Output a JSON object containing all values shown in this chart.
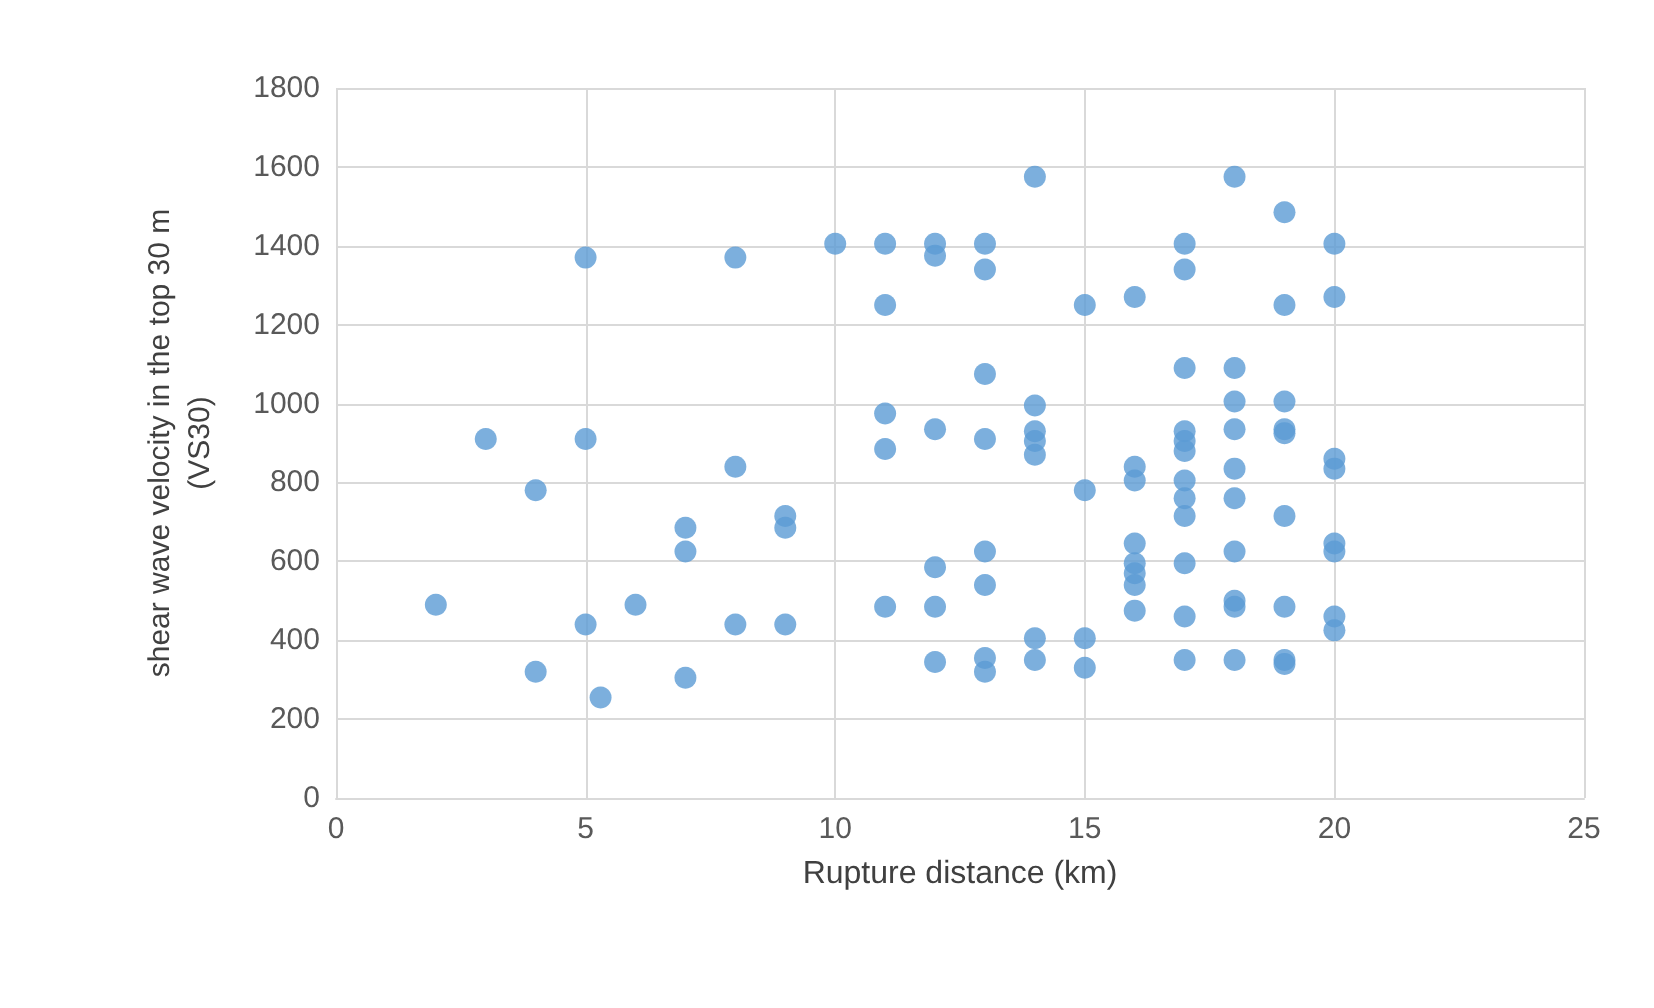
{
  "chart_data": {
    "type": "scatter",
    "xlabel": "Rupture distance (km)",
    "ylabel": "shear wave velocity in the top 30 m (VS30)",
    "x": [
      2,
      3,
      4,
      4,
      5,
      5,
      5,
      5.3,
      6,
      7,
      7,
      7,
      8,
      8,
      8,
      9,
      9,
      9,
      10,
      11,
      11,
      11,
      11,
      11,
      12,
      12,
      12,
      12,
      12,
      12,
      13,
      13,
      13,
      13,
      13,
      13,
      13,
      13,
      14,
      14,
      14,
      14,
      14,
      14,
      14,
      15,
      15,
      15,
      15,
      16,
      16,
      16,
      16,
      16,
      16,
      16,
      16,
      17,
      17,
      17,
      17,
      17,
      17,
      17,
      17,
      17,
      17,
      17,
      17,
      18,
      18,
      18,
      18,
      18,
      18,
      18,
      18,
      18,
      18,
      19,
      19,
      19,
      19,
      19,
      19,
      19,
      19,
      19,
      20,
      20,
      20,
      20,
      20,
      20,
      20,
      20
    ],
    "values": [
      490,
      910,
      780,
      320,
      1370,
      910,
      440,
      255,
      490,
      685,
      625,
      305,
      1370,
      840,
      440,
      715,
      685,
      440,
      1405,
      1405,
      1250,
      975,
      885,
      485,
      1405,
      1375,
      935,
      585,
      485,
      345,
      1405,
      1340,
      1075,
      910,
      625,
      540,
      355,
      320,
      1575,
      995,
      930,
      905,
      870,
      405,
      350,
      1250,
      780,
      405,
      330,
      1270,
      840,
      805,
      645,
      595,
      570,
      540,
      475,
      1405,
      1340,
      1090,
      930,
      905,
      880,
      805,
      760,
      715,
      595,
      460,
      350,
      1575,
      1090,
      1005,
      935,
      835,
      760,
      625,
      500,
      485,
      350,
      1485,
      1250,
      1005,
      935,
      925,
      715,
      485,
      350,
      340,
      1405,
      1270,
      860,
      835,
      645,
      625,
      460,
      425
    ],
    "color": "#5b9bd5",
    "marker": "circle",
    "xlim": [
      0,
      25
    ],
    "xticks": [
      0,
      5,
      10,
      15,
      20,
      25
    ],
    "ylim": [
      0,
      1800
    ],
    "yticks": [
      0,
      200,
      400,
      600,
      800,
      1000,
      1200,
      1400,
      1600,
      1800
    ],
    "grid": true
  }
}
